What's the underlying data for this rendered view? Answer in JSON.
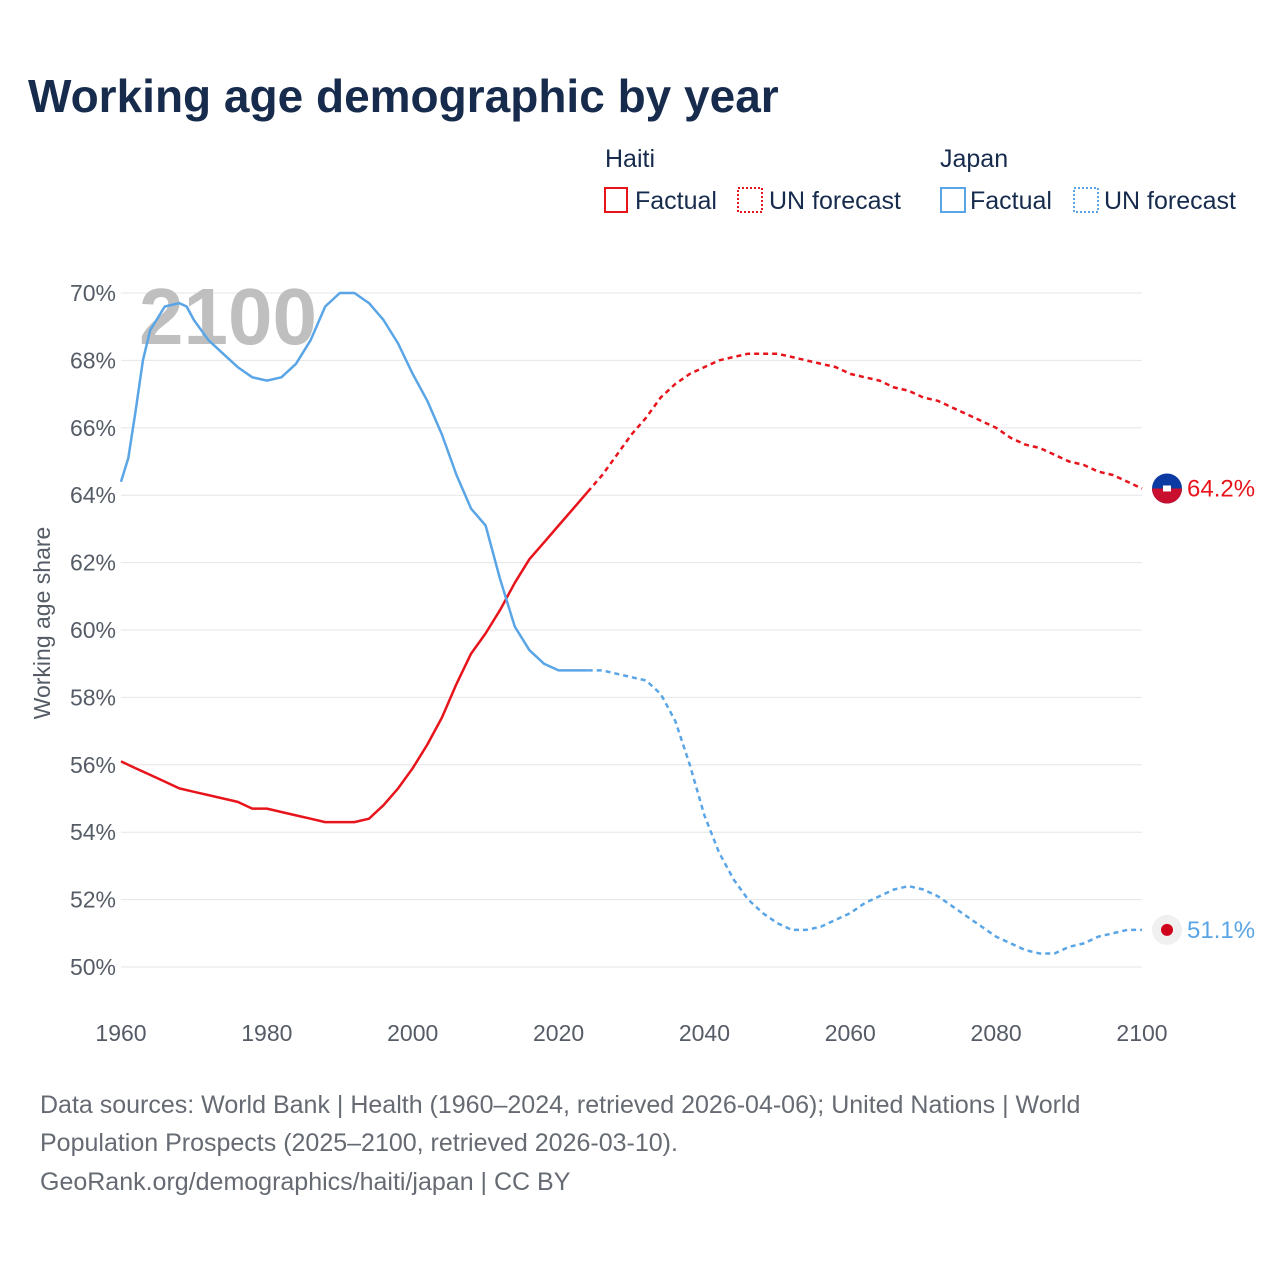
{
  "chart_data": {
    "type": "line",
    "title": "Working age demographic by year",
    "ylabel": "Working age share",
    "xlabel": "",
    "watermark_year": "2100",
    "xlim": [
      1960,
      2100
    ],
    "ylim": [
      50,
      70
    ],
    "x_ticks": [
      1960,
      1980,
      2000,
      2020,
      2040,
      2060,
      2080,
      2100
    ],
    "x_tick_labels": [
      "1960",
      "1980",
      "2000",
      "2020",
      "2040",
      "2060",
      "2080",
      "2100"
    ],
    "y_ticks": [
      50,
      52,
      54,
      56,
      58,
      60,
      62,
      64,
      66,
      68,
      70
    ],
    "y_tick_labels": [
      "50%",
      "52%",
      "54%",
      "56%",
      "58%",
      "60%",
      "62%",
      "64%",
      "66%",
      "68%",
      "70%"
    ],
    "legend": {
      "groups": [
        {
          "country": "Haiti",
          "factual_label": "Factual",
          "forecast_label": "UN forecast",
          "color": "#e8141c"
        },
        {
          "country": "Japan",
          "factual_label": "Factual",
          "forecast_label": "UN forecast",
          "color": "#5aa5e6"
        }
      ]
    },
    "series": [
      {
        "name": "Haiti",
        "color": "#e8141c",
        "end_label": "64.2%",
        "factual": {
          "x": [
            1960,
            1962,
            1964,
            1966,
            1968,
            1970,
            1972,
            1974,
            1976,
            1978,
            1980,
            1982,
            1984,
            1986,
            1988,
            1990,
            1992,
            1994,
            1996,
            1998,
            2000,
            2002,
            2004,
            2006,
            2008,
            2010,
            2012,
            2014,
            2016,
            2018,
            2020,
            2022,
            2024
          ],
          "y": [
            56.1,
            55.9,
            55.7,
            55.5,
            55.3,
            55.2,
            55.1,
            55.0,
            54.9,
            54.7,
            54.7,
            54.6,
            54.5,
            54.4,
            54.3,
            54.3,
            54.3,
            54.4,
            54.8,
            55.3,
            55.9,
            56.6,
            57.4,
            58.4,
            59.3,
            59.9,
            60.6,
            61.4,
            62.1,
            62.6,
            63.1,
            63.6,
            64.1
          ]
        },
        "forecast": {
          "x": [
            2024,
            2026,
            2028,
            2030,
            2032,
            2034,
            2036,
            2038,
            2040,
            2042,
            2044,
            2046,
            2048,
            2050,
            2052,
            2054,
            2056,
            2058,
            2060,
            2062,
            2064,
            2066,
            2068,
            2070,
            2072,
            2074,
            2076,
            2078,
            2080,
            2082,
            2084,
            2086,
            2088,
            2090,
            2092,
            2094,
            2096,
            2098,
            2100
          ],
          "y": [
            64.1,
            64.6,
            65.2,
            65.8,
            66.3,
            66.9,
            67.3,
            67.6,
            67.8,
            68.0,
            68.1,
            68.2,
            68.2,
            68.2,
            68.1,
            68.0,
            67.9,
            67.8,
            67.6,
            67.5,
            67.4,
            67.2,
            67.1,
            66.9,
            66.8,
            66.6,
            66.4,
            66.2,
            66.0,
            65.7,
            65.5,
            65.4,
            65.2,
            65.0,
            64.9,
            64.7,
            64.6,
            64.4,
            64.2
          ]
        }
      },
      {
        "name": "Japan",
        "color": "#5aa5e6",
        "end_label": "51.1%",
        "factual": {
          "x": [
            1960,
            1961,
            1962,
            1963,
            1964,
            1966,
            1968,
            1969,
            1970,
            1972,
            1974,
            1976,
            1978,
            1980,
            1982,
            1984,
            1986,
            1988,
            1990,
            1991,
            1992,
            1994,
            1996,
            1998,
            2000,
            2002,
            2004,
            2006,
            2008,
            2010,
            2012,
            2014,
            2016,
            2018,
            2020,
            2022,
            2024
          ],
          "y": [
            64.4,
            65.1,
            66.5,
            68.0,
            68.9,
            69.6,
            69.7,
            69.6,
            69.2,
            68.6,
            68.2,
            67.8,
            67.5,
            67.4,
            67.5,
            67.9,
            68.6,
            69.6,
            70.0,
            70.0,
            70.0,
            69.7,
            69.2,
            68.5,
            67.6,
            66.8,
            65.8,
            64.6,
            63.6,
            63.1,
            61.5,
            60.1,
            59.4,
            59.0,
            58.8,
            58.8,
            58.8
          ]
        },
        "forecast": {
          "x": [
            2024,
            2026,
            2028,
            2030,
            2032,
            2034,
            2036,
            2038,
            2040,
            2042,
            2044,
            2046,
            2048,
            2050,
            2052,
            2054,
            2056,
            2058,
            2060,
            2062,
            2064,
            2066,
            2068,
            2070,
            2072,
            2074,
            2076,
            2078,
            2080,
            2082,
            2084,
            2086,
            2088,
            2090,
            2092,
            2094,
            2096,
            2098,
            2100
          ],
          "y": [
            58.8,
            58.8,
            58.7,
            58.6,
            58.5,
            58.1,
            57.3,
            56.0,
            54.5,
            53.4,
            52.6,
            52.0,
            51.6,
            51.3,
            51.1,
            51.1,
            51.2,
            51.4,
            51.6,
            51.9,
            52.1,
            52.3,
            52.4,
            52.3,
            52.1,
            51.8,
            51.5,
            51.2,
            50.9,
            50.7,
            50.5,
            50.4,
            50.4,
            50.6,
            50.7,
            50.9,
            51.0,
            51.1,
            51.1
          ]
        }
      }
    ],
    "source_lines": [
      "Data sources: World Bank | Health (1960–2024, retrieved 2026-04-06); United Nations | World",
      "Population Prospects (2025–2100, retrieved 2026-03-10).",
      "GeoRank.org/demographics/haiti/japan | CC BY"
    ]
  }
}
